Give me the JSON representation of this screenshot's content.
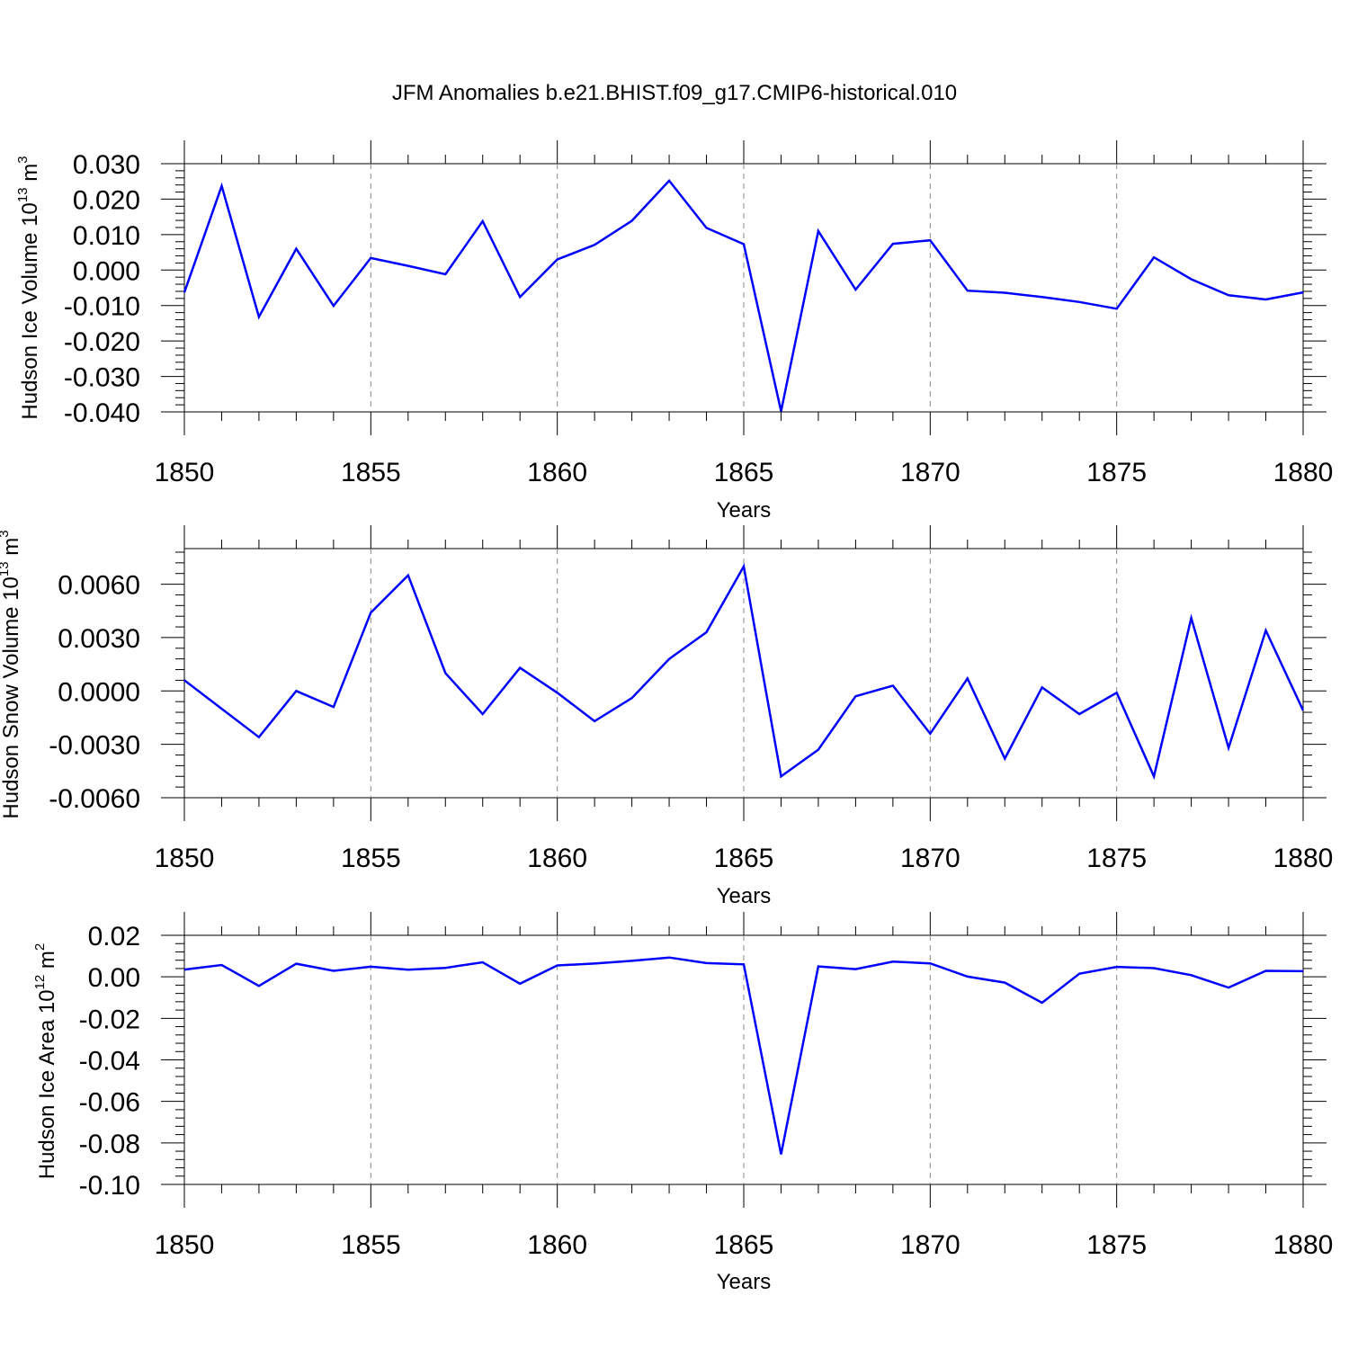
{
  "figure": {
    "title": "JFM Anomalies b.e21.BHIST.f09_g17.CMIP6-historical.010"
  },
  "colors": {
    "series": "#0000ff",
    "axes": "#000000",
    "grid": "#888888"
  },
  "chart_data": [
    {
      "type": "line",
      "ylabel_main": "Hudson Ice Volume 10",
      "ylabel_exp": "13",
      "ylabel_unit": "m",
      "ylabel_unit_exp": "3",
      "xlabel": "Years",
      "xlim": [
        1850,
        1880
      ],
      "ylim": [
        -0.04,
        0.03
      ],
      "xticks": [
        1850,
        1855,
        1860,
        1865,
        1870,
        1875,
        1880
      ],
      "yticks": [
        0.03,
        0.02,
        0.01,
        0.0,
        -0.01,
        -0.02,
        -0.03,
        -0.04
      ],
      "ytick_labels": [
        "0.030",
        "0.020",
        "0.010",
        "0.000",
        "-0.010",
        "-0.020",
        "-0.030",
        "-0.040"
      ],
      "grid": "vertical dashed at labeled years",
      "x": [
        1850,
        1851,
        1852,
        1853,
        1854,
        1855,
        1856,
        1857,
        1858,
        1859,
        1860,
        1861,
        1862,
        1863,
        1864,
        1865,
        1866,
        1867,
        1868,
        1869,
        1870,
        1871,
        1872,
        1873,
        1874,
        1875,
        1876,
        1877,
        1878,
        1879,
        1880
      ],
      "values": [
        -0.0063,
        0.0237,
        -0.0132,
        0.006,
        -0.0101,
        0.0034,
        0.0012,
        -0.0012,
        0.0138,
        -0.0076,
        0.003,
        0.0071,
        0.0139,
        0.0252,
        0.0119,
        0.0073,
        -0.0398,
        0.011,
        -0.0055,
        0.0074,
        0.0084,
        -0.0058,
        -0.0064,
        -0.0076,
        -0.009,
        -0.0109,
        0.0036,
        -0.0026,
        -0.0071,
        -0.0083,
        -0.0063
      ]
    },
    {
      "type": "line",
      "ylabel_main": "Hudson Snow Volume 10",
      "ylabel_exp": "13",
      "ylabel_unit": "m",
      "ylabel_unit_exp": "3",
      "xlabel": "Years",
      "xlim": [
        1850,
        1880
      ],
      "ylim": [
        -0.006,
        0.008
      ],
      "xticks": [
        1850,
        1855,
        1860,
        1865,
        1870,
        1875,
        1880
      ],
      "yticks": [
        0.006,
        0.003,
        0.0,
        -0.003,
        -0.006
      ],
      "ytick_labels": [
        "0.0060",
        "0.0030",
        "0.0000",
        "-0.0030",
        "-0.0060"
      ],
      "grid": "vertical dashed at labeled years",
      "x": [
        1850,
        1851,
        1852,
        1853,
        1854,
        1855,
        1856,
        1857,
        1858,
        1859,
        1860,
        1861,
        1862,
        1863,
        1864,
        1865,
        1866,
        1867,
        1868,
        1869,
        1870,
        1871,
        1872,
        1873,
        1874,
        1875,
        1876,
        1877,
        1878,
        1879,
        1880
      ],
      "values": [
        0.0006,
        -0.001,
        -0.0026,
        0.0,
        -0.0009,
        0.0044,
        0.0065,
        0.001,
        -0.0013,
        0.0013,
        -0.0001,
        -0.0017,
        -0.0004,
        0.0018,
        0.0033,
        0.007,
        -0.0048,
        -0.0033,
        -0.0003,
        0.0003,
        -0.0024,
        0.0007,
        -0.0038,
        0.0002,
        -0.0013,
        -0.0001,
        -0.0048,
        0.0041,
        -0.0032,
        0.0034,
        -0.0011
      ]
    },
    {
      "type": "line",
      "ylabel_main": "Hudson Ice Area 10",
      "ylabel_exp": "12",
      "ylabel_unit": "m",
      "ylabel_unit_exp": "2",
      "xlabel": "Years",
      "xlim": [
        1850,
        1880
      ],
      "ylim": [
        -0.1,
        0.02
      ],
      "xticks": [
        1850,
        1855,
        1860,
        1865,
        1870,
        1875,
        1880
      ],
      "yticks": [
        0.02,
        0.0,
        -0.02,
        -0.04,
        -0.06,
        -0.08,
        -0.1
      ],
      "ytick_labels": [
        "0.02",
        "0.00",
        "-0.02",
        "-0.04",
        "-0.06",
        "-0.08",
        "-0.10"
      ],
      "grid": "vertical dashed at labeled years",
      "x": [
        1850,
        1851,
        1852,
        1853,
        1854,
        1855,
        1856,
        1857,
        1858,
        1859,
        1860,
        1861,
        1862,
        1863,
        1864,
        1865,
        1866,
        1867,
        1868,
        1869,
        1870,
        1871,
        1872,
        1873,
        1874,
        1875,
        1876,
        1877,
        1878,
        1879,
        1880
      ],
      "values": [
        0.0035,
        0.0057,
        -0.0044,
        0.0063,
        0.0029,
        0.0049,
        0.0034,
        0.0043,
        0.007,
        -0.0033,
        0.0055,
        0.0064,
        0.0077,
        0.0093,
        0.0066,
        0.006,
        -0.0855,
        0.005,
        0.0037,
        0.0073,
        0.0065,
        0.0001,
        -0.0028,
        -0.0125,
        0.0015,
        0.0048,
        0.0042,
        0.0008,
        -0.0052,
        0.0029,
        0.0027
      ]
    }
  ]
}
